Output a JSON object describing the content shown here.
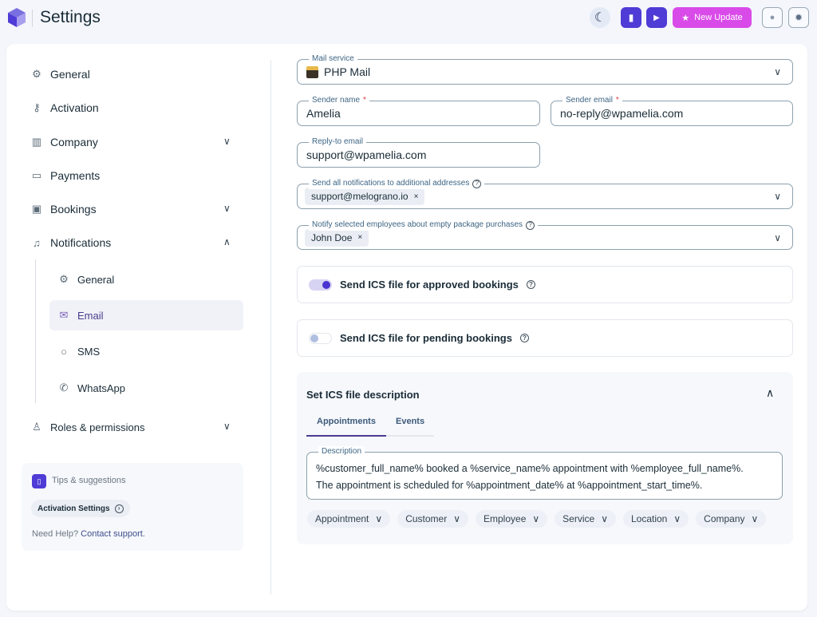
{
  "header": {
    "title": "Settings",
    "new_update": "New Update",
    "colors": {
      "accent": "#4f3bd6",
      "new_update": "#d94be8"
    }
  },
  "sidebar": {
    "items": [
      {
        "label": "General",
        "icon": "gear-icon"
      },
      {
        "label": "Activation",
        "icon": "key-icon"
      },
      {
        "label": "Company",
        "icon": "building-icon"
      },
      {
        "label": "Payments",
        "icon": "card-icon"
      },
      {
        "label": "Bookings",
        "icon": "wallet-icon"
      },
      {
        "label": "Notifications",
        "icon": "bell-icon"
      }
    ],
    "sub_items": [
      {
        "label": "General",
        "icon": "gear-icon"
      },
      {
        "label": "Email",
        "icon": "mail-icon",
        "selected": true
      },
      {
        "label": "SMS",
        "icon": "chat-icon"
      },
      {
        "label": "WhatsApp",
        "icon": "whatsapp-icon"
      }
    ],
    "roles": "Roles & permissions",
    "tips": {
      "title": "Tips & suggestions",
      "chip": "Activation Settings",
      "help": "Need Help?",
      "contact": "Contact support."
    }
  },
  "form": {
    "mail_service": {
      "label": "Mail service",
      "value": "PHP Mail"
    },
    "sender_name": {
      "label": "Sender name",
      "value": "Amelia"
    },
    "sender_email": {
      "label": "Sender email",
      "value": "no-reply@wpamelia.com"
    },
    "reply_to": {
      "label": "Reply-to email",
      "value": "support@wpamelia.com"
    },
    "additional": {
      "label": "Send all notifications to additional addresses",
      "tag": "support@melograno.io"
    },
    "notify_employees": {
      "label": "Notify selected employees about empty package purchases",
      "tag": "John Doe"
    },
    "ics_approved": {
      "label": "Send ICS file for approved bookings",
      "on": true
    },
    "ics_pending": {
      "label": "Send ICS file for pending bookings",
      "on": false
    }
  },
  "ics": {
    "title": "Set ICS file description",
    "tabs": [
      "Appointments",
      "Events"
    ],
    "description_label": "Description",
    "description": "%customer_full_name% booked a %service_name% appointment with %employee_full_name%.\nThe appointment is scheduled for %appointment_date% at %appointment_start_time%.",
    "placeholders": [
      "Appointment",
      "Customer",
      "Employee",
      "Service",
      "Location",
      "Company"
    ]
  }
}
